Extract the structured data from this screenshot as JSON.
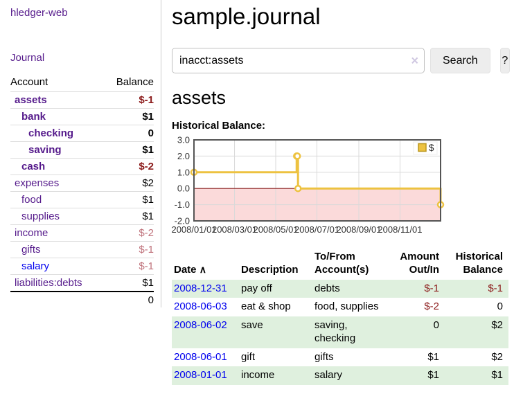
{
  "app": {
    "title": "hledger-web"
  },
  "sidebar": {
    "journal_label": "Journal",
    "accounts_table": {
      "headers": {
        "account": "Account",
        "balance": "Balance"
      },
      "rows": [
        {
          "label": "assets",
          "indent": 0,
          "bold": true,
          "link_color": "purple",
          "balance": "$-1",
          "balance_style": "neg-dark",
          "balance_bold": true
        },
        {
          "label": "bank",
          "indent": 1,
          "bold": true,
          "link_color": "purple",
          "balance": "$1",
          "balance_style": "normal",
          "balance_bold": true
        },
        {
          "label": "checking",
          "indent": 2,
          "bold": true,
          "link_color": "purple",
          "balance": "0",
          "balance_style": "normal",
          "balance_bold": true
        },
        {
          "label": "saving",
          "indent": 2,
          "bold": true,
          "link_color": "purple",
          "balance": "$1",
          "balance_style": "normal",
          "balance_bold": true
        },
        {
          "label": "cash",
          "indent": 1,
          "bold": true,
          "link_color": "purple",
          "balance": "$-2",
          "balance_style": "neg-dark",
          "balance_bold": true
        },
        {
          "label": "expenses",
          "indent": 0,
          "bold": false,
          "link_color": "purple",
          "balance": "$2",
          "balance_style": "normal",
          "balance_bold": false
        },
        {
          "label": "food",
          "indent": 1,
          "bold": false,
          "link_color": "purple",
          "balance": "$1",
          "balance_style": "normal",
          "balance_bold": false
        },
        {
          "label": "supplies",
          "indent": 1,
          "bold": false,
          "link_color": "purple",
          "balance": "$1",
          "balance_style": "normal",
          "balance_bold": false
        },
        {
          "label": "income",
          "indent": 0,
          "bold": false,
          "link_color": "purple",
          "balance": "$-2",
          "balance_style": "neg-muted",
          "balance_bold": false
        },
        {
          "label": "gifts",
          "indent": 1,
          "bold": false,
          "link_color": "purple",
          "balance": "$-1",
          "balance_style": "neg-muted",
          "balance_bold": false
        },
        {
          "label": "salary",
          "indent": 1,
          "bold": false,
          "link_color": "blue",
          "balance": "$-1",
          "balance_style": "neg-muted",
          "balance_bold": false
        },
        {
          "label": "liabilities:debts",
          "indent": 0,
          "bold": false,
          "link_color": "purple",
          "balance": "$1",
          "balance_style": "normal",
          "balance_bold": false
        }
      ],
      "total": "0"
    }
  },
  "header": {
    "title": "sample.journal"
  },
  "search": {
    "value": "inacct:assets",
    "clear_icon": "×",
    "button_label": "Search",
    "help_label": "?"
  },
  "main": {
    "account_heading": "assets",
    "chart_label": "Historical Balance:"
  },
  "chart_data": {
    "type": "line",
    "title": "Historical Balance:",
    "step": true,
    "series": [
      {
        "name": "$",
        "color": "#edc240",
        "points": [
          [
            "2008-01-01",
            1
          ],
          [
            "2008-06-01",
            2
          ],
          [
            "2008-06-02",
            2
          ],
          [
            "2008-06-03",
            0
          ],
          [
            "2008-12-31",
            -1
          ]
        ]
      }
    ],
    "xlim": [
      "2008-01-01",
      "2008-12-31"
    ],
    "ylim": [
      -2,
      3
    ],
    "yticks": [
      3.0,
      2.0,
      1.0,
      0.0,
      -1.0,
      -2.0
    ],
    "xtick_labels": [
      "2008/01/01",
      "2008/03/01",
      "2008/05/01",
      "2008/07/01",
      "2008/09/01",
      "2008/11/01"
    ],
    "legend_position": "top-right",
    "grid": true,
    "negative_region_fill": "#fbdada",
    "zero_line_color": "#8b1a1a"
  },
  "transactions": {
    "headers": {
      "date": "Date",
      "description": "Description",
      "accounts": "To/From Account(s)",
      "amount": "Amount Out/In",
      "balance": "Historical Balance"
    },
    "sort_icon": "∧",
    "rows": [
      {
        "date": "2008-12-31",
        "description": "pay off",
        "accounts": "debts",
        "amount": "$-1",
        "amount_negative": true,
        "balance": "$-1",
        "balance_negative": true
      },
      {
        "date": "2008-06-03",
        "description": "eat & shop",
        "accounts": "food, supplies",
        "amount": "$-2",
        "amount_negative": true,
        "balance": "0",
        "balance_negative": false
      },
      {
        "date": "2008-06-02",
        "description": "save",
        "accounts": "saving, checking",
        "amount": "0",
        "amount_negative": false,
        "balance": "$2",
        "balance_negative": false
      },
      {
        "date": "2008-06-01",
        "description": "gift",
        "accounts": "gifts",
        "amount": "$1",
        "amount_negative": false,
        "balance": "$2",
        "balance_negative": false
      },
      {
        "date": "2008-01-01",
        "description": "income",
        "accounts": "salary",
        "amount": "$1",
        "amount_negative": false,
        "balance": "$1",
        "balance_negative": false
      }
    ]
  },
  "colors": {
    "link_purple": "#551a8b",
    "link_blue": "#0000ee",
    "negative_dark": "#8b1a1a",
    "negative_muted": "#c0737c",
    "row_stripe_green": "#dff0de",
    "series_gold": "#edc240",
    "chart_negative_fill": "#fbdada",
    "chart_zero_line": "#8b1a1a",
    "chart_border": "#545454",
    "chart_grid": "#d9d9d9"
  }
}
